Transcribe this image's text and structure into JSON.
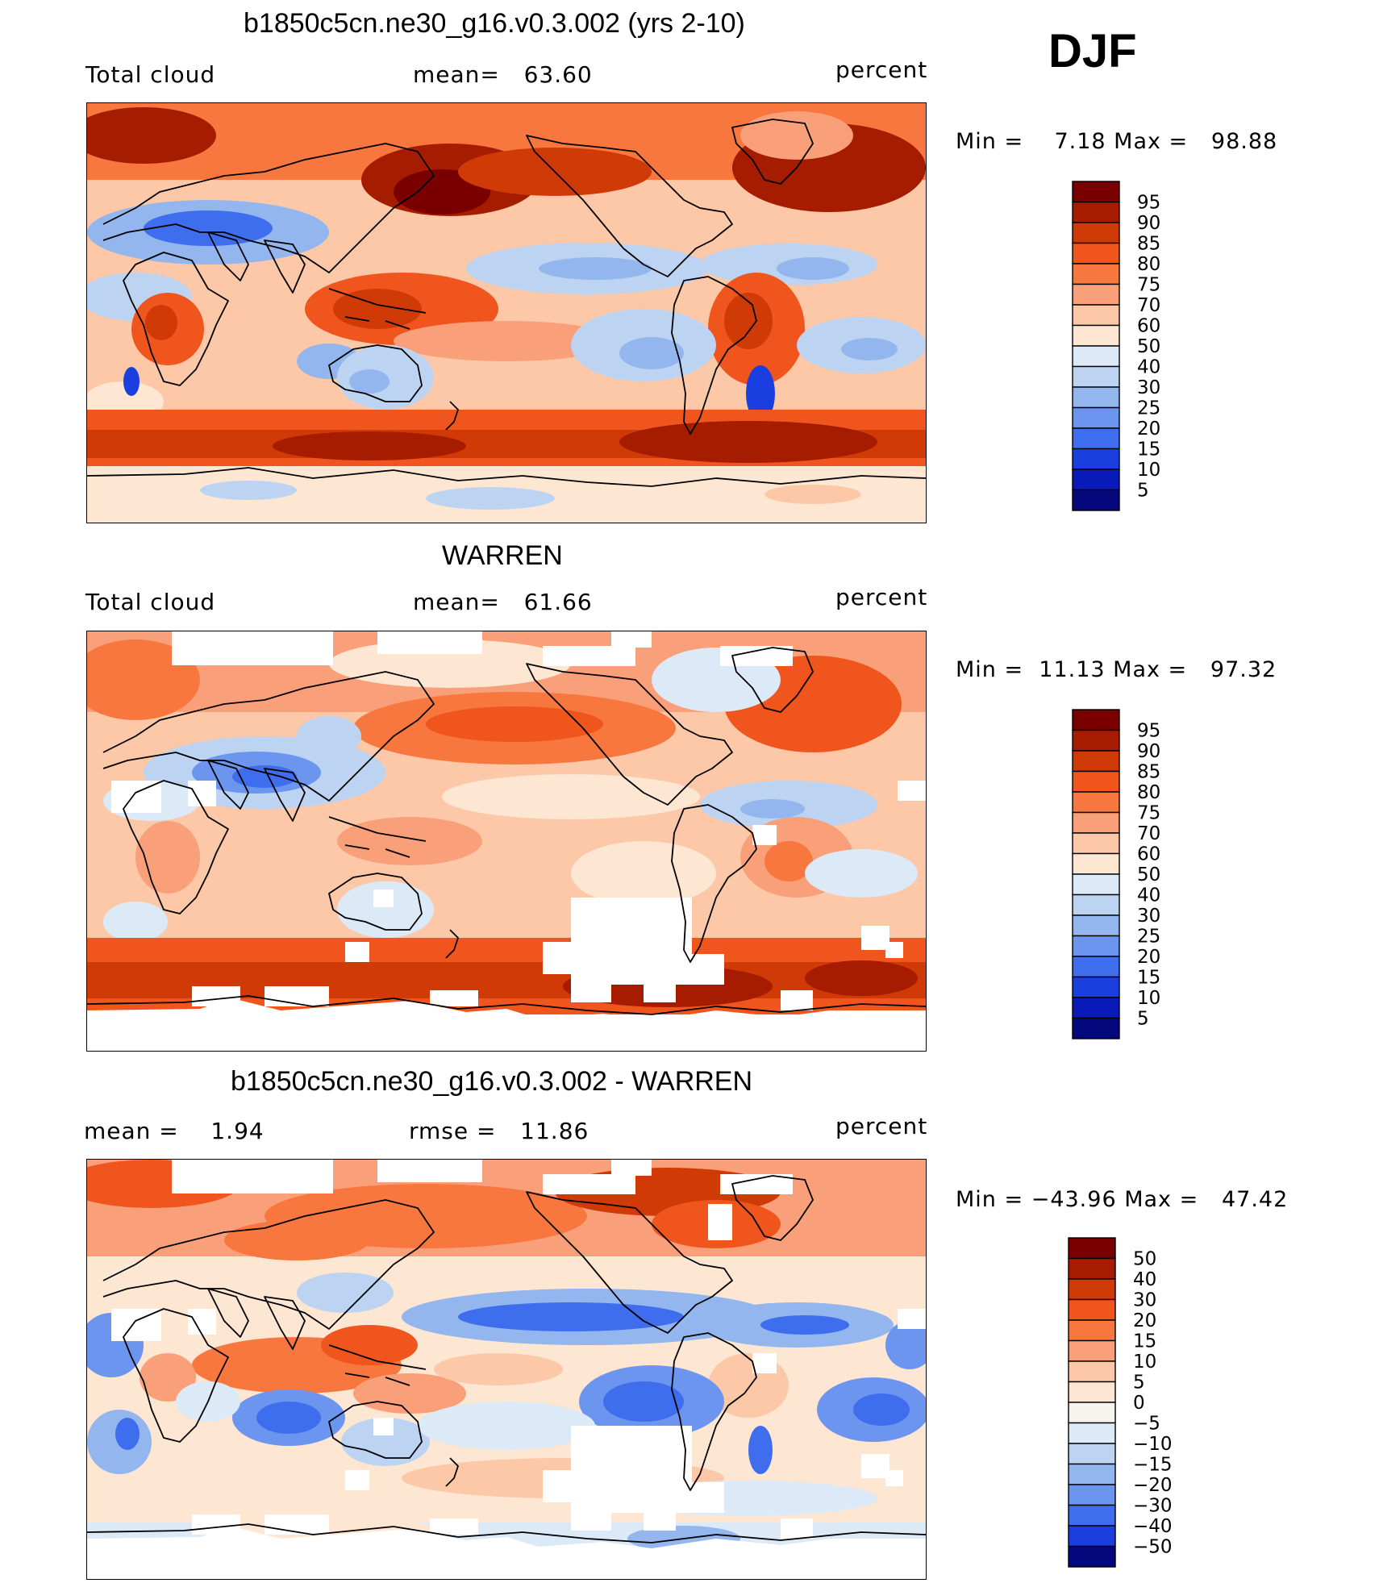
{
  "season": "DJF",
  "panels": [
    {
      "title": "b1850c5cn.ne30_g16.v0.3.002 (yrs 2-10)",
      "left_label": "Total cloud",
      "center_label": "mean=   63.60",
      "right_label": "percent",
      "minmax": "Min =    7.18 Max =   98.88",
      "scale": "abs",
      "colorbar": {
        "labels": [
          "95",
          "90",
          "85",
          "80",
          "75",
          "70",
          "60",
          "50",
          "40",
          "30",
          "25",
          "20",
          "15",
          "10",
          "5"
        ]
      }
    },
    {
      "title": "WARREN",
      "left_label": "Total cloud",
      "center_label": "mean=   61.66",
      "right_label": "percent",
      "minmax": "Min =  11.13 Max =   97.32",
      "scale": "abs",
      "colorbar": {
        "labels": [
          "95",
          "90",
          "85",
          "80",
          "75",
          "70",
          "60",
          "50",
          "40",
          "30",
          "25",
          "20",
          "15",
          "10",
          "5"
        ]
      }
    },
    {
      "title": "b1850c5cn.ne30_g16.v0.3.002 - WARREN",
      "left_label": "mean =    1.94",
      "center_label": "rmse =   11.86",
      "right_label": "percent",
      "minmax": "Min = −43.96 Max =   47.42",
      "scale": "diff",
      "colorbar": {
        "labels": [
          "50",
          "40",
          "30",
          "20",
          "15",
          "10",
          "5",
          "0",
          "−5",
          "−10",
          "−15",
          "−20",
          "−30",
          "−40",
          "−50"
        ]
      }
    }
  ],
  "colors": {
    "abs": [
      "#7a0000",
      "#a51c00",
      "#cf3a07",
      "#f0551d",
      "#f7773f",
      "#f9a07a",
      "#fcc8a8",
      "#fde6d2",
      "#dce9f7",
      "#bcd4f2",
      "#94b6ee",
      "#6b95ee",
      "#3e6dee",
      "#1b3ee0",
      "#0a1ab8",
      "#05077d"
    ],
    "diff": [
      "#7a0000",
      "#a51c00",
      "#cf3a07",
      "#f0551d",
      "#f7773f",
      "#f9a07a",
      "#fcc8a8",
      "#fde6d2",
      "#f7f3ee",
      "#dce9f7",
      "#bcd4f2",
      "#94b6ee",
      "#6b95ee",
      "#3e6dee",
      "#1b3ee0",
      "#05077d"
    ]
  }
}
